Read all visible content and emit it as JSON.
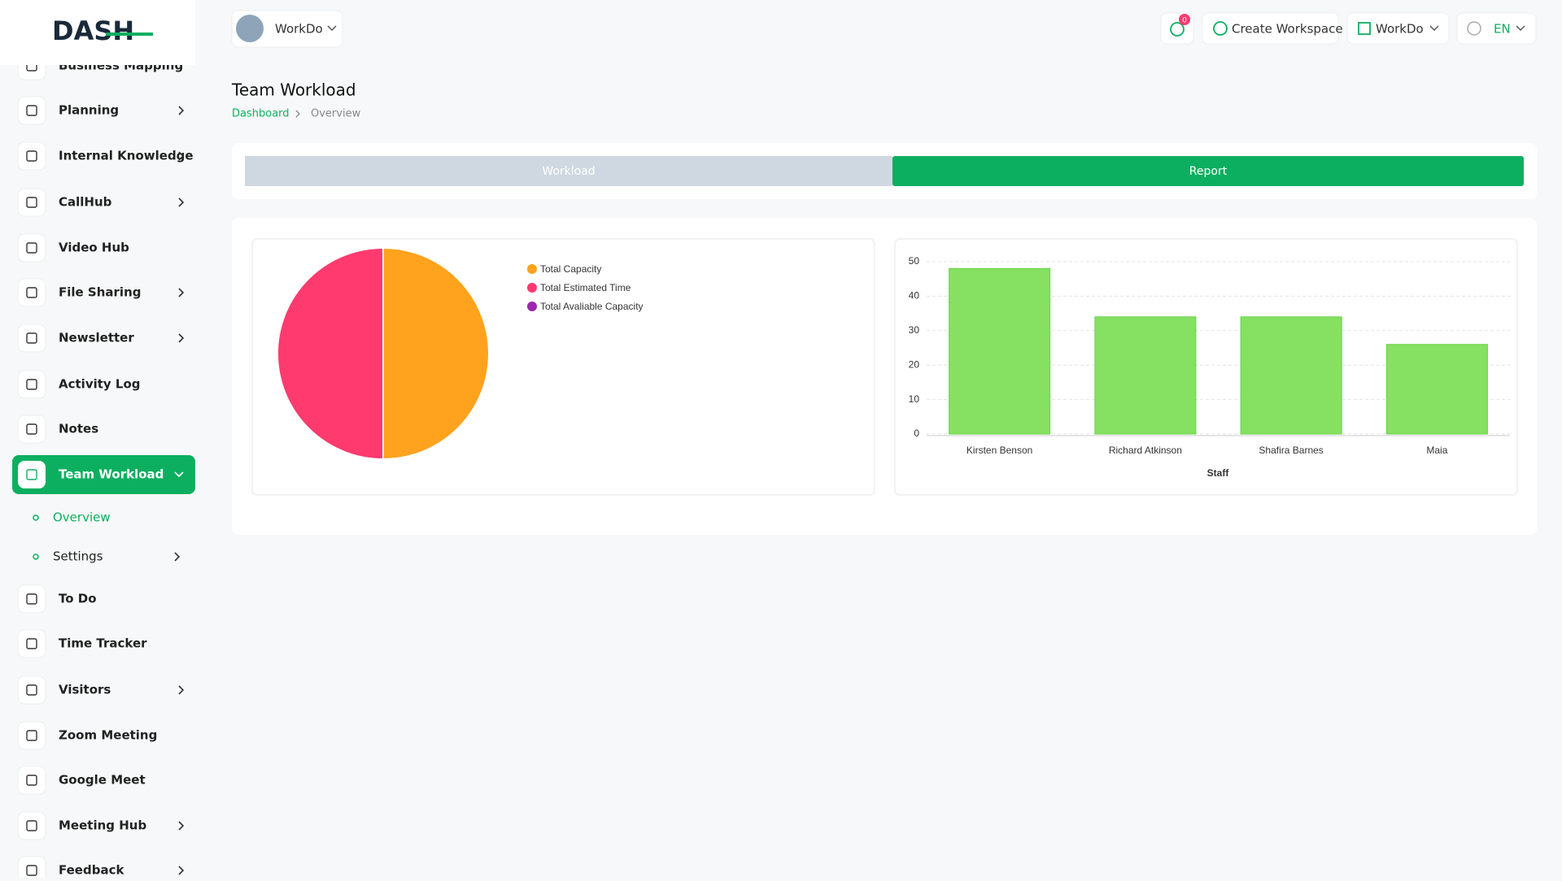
{
  "header": {
    "logo": "DASH",
    "workspace": "WorkDo",
    "notifications": 0,
    "create_workspace": "Create Workspace",
    "user": "WorkDo",
    "language": "EN"
  },
  "sidebar": {
    "items": [
      "Business Mapping",
      "Planning",
      "Internal Knowledge",
      "CallHub",
      "Video Hub",
      "File Sharing",
      "Newsletter",
      "Activity Log",
      "Notes",
      "Team Workload",
      "To Do",
      "Time Tracker",
      "Visitors",
      "Zoom Meeting",
      "Google Meet",
      "Meeting Hub",
      "Feedback"
    ],
    "sub_items": [
      "Overview",
      "Settings"
    ]
  },
  "page": {
    "title": "Team Workload",
    "breadcrumb": [
      "Dashboard",
      "Overview"
    ],
    "tabs": [
      "Workload",
      "Report"
    ]
  },
  "chart_data": [
    {
      "type": "pie",
      "categories": [
        "Total Capacity",
        "Total Estimated Time",
        "Total Avaliable Capacity"
      ],
      "values": [
        50,
        50,
        0
      ],
      "colors": [
        "#ffa21d",
        "#ff3a6e",
        "#9c27b0"
      ]
    },
    {
      "type": "bar",
      "x_label": "Staff",
      "categories": [
        "Kirsten Benson",
        "Richard Atkinson",
        "Shafira Barnes",
        "Maia"
      ],
      "values": [
        48,
        34,
        34,
        26
      ],
      "color": "#86e062",
      "ylim": [
        0,
        50
      ],
      "yticks": [
        0,
        10,
        20,
        30,
        40,
        50
      ],
      "grid": true
    }
  ]
}
